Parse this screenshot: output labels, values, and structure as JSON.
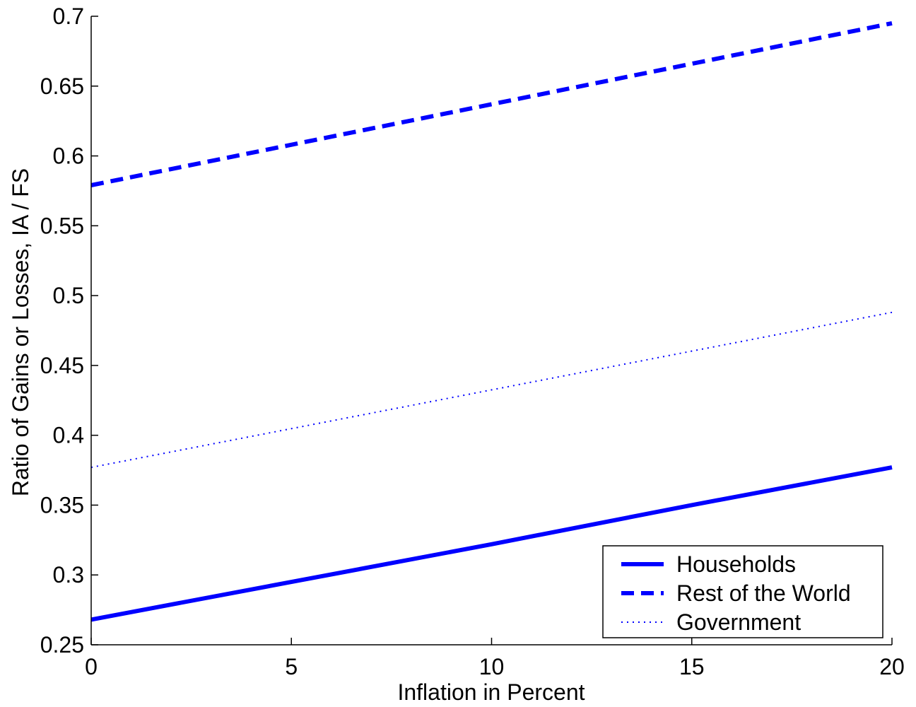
{
  "chart_data": {
    "type": "line",
    "xlabel": "Inflation in Percent",
    "ylabel": "Ratio of Gains or Losses, IA / FS",
    "xlim": [
      0,
      20
    ],
    "ylim": [
      0.25,
      0.7
    ],
    "xticks": [
      0,
      5,
      10,
      15,
      20
    ],
    "xtick_labels": [
      "0",
      "5",
      "10",
      "15",
      "20"
    ],
    "yticks": [
      0.25,
      0.3,
      0.35,
      0.4,
      0.45,
      0.5,
      0.55,
      0.6,
      0.65,
      0.7
    ],
    "ytick_labels": [
      "0.25",
      "0.3",
      "0.35",
      "0.4",
      "0.45",
      "0.5",
      "0.55",
      "0.6",
      "0.65",
      "0.7"
    ],
    "grid": false,
    "legend_position": "bottom-right",
    "series": [
      {
        "name": "Households",
        "style": "solid",
        "color": "#0000ff",
        "x": [
          0,
          5,
          10,
          15,
          20
        ],
        "y": [
          0.268,
          0.295,
          0.322,
          0.35,
          0.377
        ]
      },
      {
        "name": "Rest of the World",
        "style": "dashed",
        "color": "#0000ff",
        "x": [
          0,
          20
        ],
        "y": [
          0.579,
          0.695
        ]
      },
      {
        "name": "Government",
        "style": "dotted",
        "color": "#0000ff",
        "x": [
          0,
          20
        ],
        "y": [
          0.377,
          0.488
        ]
      }
    ]
  }
}
